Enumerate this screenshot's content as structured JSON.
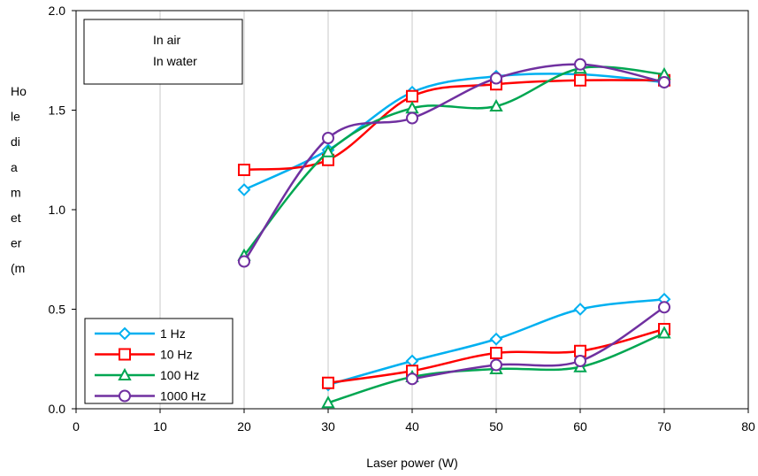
{
  "chart_data": {
    "type": "line",
    "title": "",
    "xlabel": "Laser power (W)",
    "ylabel_lines": [
      "Ho",
      "le",
      "di",
      "a",
      "m",
      "et",
      "er",
      "(m"
    ],
    "xlim": [
      0,
      80
    ],
    "ylim": [
      0,
      2.0
    ],
    "xticks": [
      0,
      10,
      20,
      30,
      40,
      50,
      60,
      70,
      80
    ],
    "yticks": [
      0.0,
      0.5,
      1.0,
      1.5,
      2.0
    ],
    "ytick_labels": [
      "0.0",
      "0.5",
      "1.0",
      "1.5",
      "2.0"
    ],
    "grid": "vertical",
    "note_lines": [
      "In air",
      "In water"
    ],
    "legend_position": "bottom-left",
    "series": [
      {
        "name": "1 Hz",
        "color": "#00B0F0",
        "marker": "diamond",
        "group": "In air",
        "x": [
          20,
          30,
          40,
          50,
          60,
          70
        ],
        "y": [
          1.1,
          1.3,
          1.59,
          1.67,
          1.68,
          1.64
        ]
      },
      {
        "name": "10 Hz",
        "color": "#FF0000",
        "marker": "square",
        "group": "In air",
        "x": [
          20,
          30,
          40,
          50,
          60,
          70
        ],
        "y": [
          1.2,
          1.25,
          1.57,
          1.63,
          1.65,
          1.65
        ]
      },
      {
        "name": "100 Hz",
        "color": "#00A651",
        "marker": "triangle",
        "group": "In air",
        "x": [
          20,
          30,
          40,
          50,
          60,
          70
        ],
        "y": [
          0.77,
          1.29,
          1.51,
          1.52,
          1.71,
          1.68
        ]
      },
      {
        "name": "1000 Hz",
        "color": "#7030A0",
        "marker": "circle",
        "group": "In air",
        "x": [
          20,
          30,
          40,
          50,
          60,
          70
        ],
        "y": [
          0.74,
          1.36,
          1.46,
          1.66,
          1.73,
          1.64
        ]
      },
      {
        "name": "1 Hz",
        "color": "#00B0F0",
        "marker": "diamond",
        "group": "In water",
        "x": [
          30,
          40,
          50,
          60,
          70
        ],
        "y": [
          0.12,
          0.24,
          0.35,
          0.5,
          0.55
        ]
      },
      {
        "name": "10 Hz",
        "color": "#FF0000",
        "marker": "square",
        "group": "In water",
        "x": [
          30,
          40,
          50,
          60,
          70
        ],
        "y": [
          0.13,
          0.19,
          0.28,
          0.29,
          0.4
        ]
      },
      {
        "name": "100 Hz",
        "color": "#00A651",
        "marker": "triangle",
        "group": "In water",
        "x": [
          30,
          40,
          50,
          60,
          70
        ],
        "y": [
          0.03,
          0.16,
          0.2,
          0.21,
          0.38
        ]
      },
      {
        "name": "1000 Hz",
        "color": "#7030A0",
        "marker": "circle",
        "group": "In water",
        "x": [
          40,
          50,
          60,
          70
        ],
        "y": [
          0.15,
          0.22,
          0.24,
          0.51
        ]
      }
    ],
    "legend": [
      {
        "name": "1 Hz",
        "color": "#00B0F0",
        "marker": "diamond"
      },
      {
        "name": "10 Hz",
        "color": "#FF0000",
        "marker": "square"
      },
      {
        "name": "100 Hz",
        "color": "#00A651",
        "marker": "triangle"
      },
      {
        "name": "1000 Hz",
        "color": "#7030A0",
        "marker": "circle"
      }
    ]
  }
}
